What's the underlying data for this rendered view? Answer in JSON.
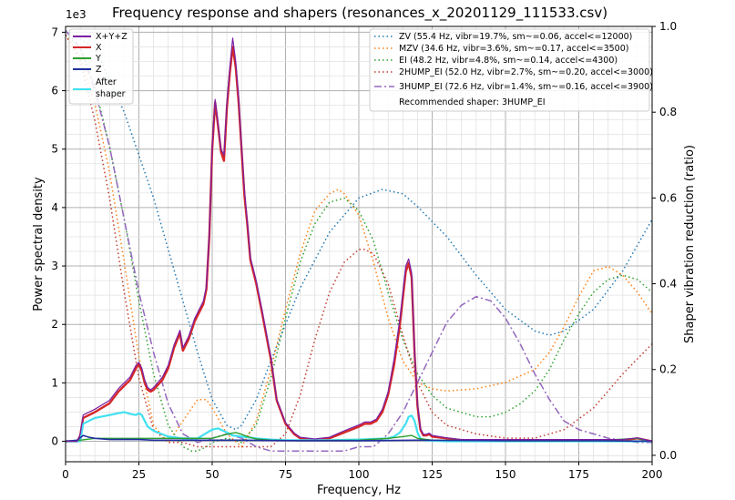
{
  "chart_data": {
    "type": "line",
    "title": "Frequency response and shapers (resonances_x_20201129_111533.csv)",
    "xlabel": "Frequency, Hz",
    "ylabel": "Power spectral density",
    "y2label": "Shaper vibration reduction (ratio)",
    "y_multiplier": "1e3",
    "xlim": [
      0,
      200
    ],
    "ylim": [
      -0.35,
      7.1
    ],
    "y2lim": [
      -0.015,
      1.0
    ],
    "xticks": [
      "0",
      "25",
      "50",
      "75",
      "100",
      "125",
      "150",
      "175",
      "200"
    ],
    "xtick_values": [
      0,
      25,
      50,
      75,
      100,
      125,
      150,
      175,
      200
    ],
    "yticks": [
      "0",
      "1",
      "2",
      "3",
      "4",
      "5",
      "6",
      "7"
    ],
    "ytick_values": [
      0,
      1,
      2,
      3,
      4,
      5,
      6,
      7
    ],
    "y2ticks": [
      "0.0",
      "0.2",
      "0.4",
      "0.6",
      "0.8",
      "1.0"
    ],
    "y2tick_values": [
      0,
      0.2,
      0.4,
      0.6,
      0.8,
      1.0
    ],
    "grid": true,
    "psd_legend": [
      "X+Y+Z",
      "X",
      "Y",
      "Z",
      "After\nshaper"
    ],
    "shaper_legend": [
      "ZV (55.4 Hz, vibr=19.7%, sm~=0.06, accel<=12000)",
      "MZV (34.6 Hz, vibr=3.6%, sm~=0.17, accel<=3500)",
      "EI (48.2 Hz, vibr=4.8%, sm~=0.14, accel<=4300)",
      "2HUMP_EI (52.0 Hz, vibr=2.7%, sm~=0.20, accel<=3000)",
      "3HUMP_EI (72.6 Hz, vibr=1.4%, sm~=0.16, accel<=3900)"
    ],
    "recommended": "Recommended shaper: 3HUMP_EI",
    "colors": {
      "xyz": "#7b1fa2",
      "x": "#d62728",
      "y": "#2ca02c",
      "z": "#1f2fa0",
      "after": "#40e0f0",
      "zv": "#1f77b4",
      "mzv": "#ff7f0e",
      "ei": "#2ca02c",
      "hump2": "#c0392b",
      "hump3": "#9467bd"
    },
    "psd_series": [
      {
        "name": "X",
        "x": [
          0,
          1,
          2,
          3,
          4,
          5,
          6,
          10,
          15,
          18,
          20,
          22,
          24,
          25,
          26,
          27,
          28,
          29,
          30,
          33,
          35,
          37,
          39,
          40,
          42,
          44,
          45,
          46,
          47,
          48,
          49,
          50,
          51,
          52,
          53,
          54,
          55,
          56,
          57,
          58,
          59,
          60,
          61,
          62,
          63,
          65,
          67,
          70,
          72,
          75,
          78,
          80,
          85,
          90,
          95,
          100,
          102,
          104,
          106,
          108,
          110,
          112,
          114,
          116,
          117,
          118,
          119,
          120,
          121,
          122,
          123,
          124,
          125,
          130,
          135,
          140,
          150,
          160,
          170,
          180,
          190,
          195,
          200
        ],
        "y": [
          0,
          0,
          0,
          0,
          0,
          0.1,
          0.4,
          0.5,
          0.65,
          0.85,
          0.95,
          1.05,
          1.25,
          1.32,
          1.2,
          1.0,
          0.88,
          0.85,
          0.88,
          1.05,
          1.25,
          1.6,
          1.85,
          1.55,
          1.75,
          2.05,
          2.15,
          2.25,
          2.35,
          2.6,
          3.5,
          5.0,
          5.8,
          5.4,
          4.95,
          4.8,
          5.7,
          6.3,
          6.75,
          6.4,
          5.8,
          5.0,
          4.2,
          3.7,
          3.1,
          2.7,
          2.2,
          1.4,
          0.7,
          0.3,
          0.12,
          0.05,
          0.02,
          0.05,
          0.15,
          0.25,
          0.3,
          0.3,
          0.35,
          0.5,
          0.8,
          1.3,
          2.0,
          2.9,
          3.05,
          2.8,
          1.5,
          0.6,
          0.2,
          0.1,
          0.1,
          0.12,
          0.08,
          0.05,
          0.02,
          0.02,
          0.02,
          0.02,
          0.02,
          0.02,
          0.02,
          0.05,
          0.0
        ]
      },
      {
        "name": "After shaper",
        "x": [
          0,
          5,
          6,
          10,
          15,
          18,
          20,
          22,
          24,
          25,
          26,
          27,
          28,
          30,
          35,
          40,
          45,
          50,
          52,
          55,
          57,
          60,
          65,
          70,
          75,
          80,
          90,
          100,
          110,
          112,
          114,
          116,
          117,
          118,
          119,
          120,
          121,
          122,
          125,
          130,
          150,
          170,
          200
        ],
        "y": [
          0,
          0,
          0.3,
          0.4,
          0.45,
          0.48,
          0.5,
          0.47,
          0.45,
          0.48,
          0.45,
          0.35,
          0.25,
          0.18,
          0.08,
          0.05,
          0.05,
          0.2,
          0.22,
          0.15,
          0.1,
          0.08,
          0.05,
          0.03,
          0.02,
          0.02,
          0.02,
          0.03,
          0.05,
          0.08,
          0.15,
          0.3,
          0.42,
          0.44,
          0.35,
          0.15,
          0.05,
          0.02,
          0.01,
          0.0,
          0.0,
          0.0,
          0.0
        ]
      },
      {
        "name": "Y",
        "x": [
          0,
          5,
          10,
          20,
          30,
          40,
          50,
          55,
          58,
          60,
          62,
          65,
          70,
          80,
          100,
          110,
          115,
          118,
          120,
          125,
          150,
          180,
          195,
          200
        ],
        "y": [
          0,
          0.02,
          0.05,
          0.05,
          0.05,
          0.05,
          0.05,
          0.12,
          0.15,
          0.12,
          0.08,
          0.04,
          0.02,
          0.01,
          0.02,
          0.05,
          0.08,
          0.1,
          0.05,
          0.02,
          0.01,
          0.01,
          0.05,
          0.0
        ]
      },
      {
        "name": "Z",
        "x": [
          0,
          4,
          6,
          8,
          10,
          15,
          20,
          25,
          30,
          40,
          50,
          60,
          80,
          100,
          120,
          150,
          180,
          200
        ],
        "y": [
          0,
          0.02,
          0.1,
          0.07,
          0.05,
          0.03,
          0.03,
          0.03,
          0.02,
          0.02,
          0.02,
          0.02,
          0.01,
          0.01,
          0.02,
          0.01,
          0.01,
          0.0
        ]
      },
      {
        "name": "X+Y+Z",
        "x": [
          0,
          1,
          2,
          3,
          4,
          5,
          6,
          10,
          15,
          18,
          20,
          22,
          24,
          25,
          26,
          27,
          28,
          29,
          30,
          33,
          35,
          37,
          39,
          40,
          42,
          44,
          45,
          46,
          47,
          48,
          49,
          50,
          51,
          52,
          53,
          54,
          55,
          56,
          57,
          58,
          59,
          60,
          61,
          62,
          63,
          65,
          67,
          70,
          72,
          75,
          78,
          80,
          85,
          90,
          95,
          100,
          102,
          104,
          106,
          108,
          110,
          112,
          114,
          116,
          117,
          118,
          119,
          120,
          121,
          122,
          123,
          124,
          125,
          130,
          135,
          140,
          150,
          160,
          170,
          180,
          190,
          195,
          200
        ],
        "y": [
          0,
          0,
          0,
          0,
          0,
          0.12,
          0.45,
          0.55,
          0.7,
          0.9,
          1.0,
          1.1,
          1.3,
          1.35,
          1.25,
          1.05,
          0.92,
          0.88,
          0.92,
          1.1,
          1.3,
          1.65,
          1.9,
          1.6,
          1.8,
          2.1,
          2.2,
          2.3,
          2.4,
          2.65,
          3.55,
          5.05,
          5.85,
          5.45,
          5.0,
          4.9,
          5.8,
          6.4,
          6.9,
          6.5,
          5.9,
          5.05,
          4.3,
          3.75,
          3.15,
          2.75,
          2.25,
          1.45,
          0.72,
          0.32,
          0.14,
          0.07,
          0.04,
          0.07,
          0.18,
          0.28,
          0.33,
          0.33,
          0.38,
          0.55,
          0.85,
          1.4,
          2.1,
          3.0,
          3.12,
          2.88,
          1.55,
          0.65,
          0.22,
          0.12,
          0.12,
          0.14,
          0.1,
          0.06,
          0.03,
          0.03,
          0.03,
          0.03,
          0.03,
          0.03,
          0.03,
          0.06,
          0.0
        ]
      }
    ],
    "shaper_series": [
      {
        "name": "ZV",
        "x": [
          0,
          10,
          20,
          30,
          40,
          45,
          50,
          55,
          58,
          60,
          65,
          70,
          80,
          90,
          100,
          108,
          115,
          120,
          130,
          140,
          150,
          160,
          165,
          170,
          180,
          190,
          200
        ],
        "y": [
          0.99,
          0.95,
          0.8,
          0.6,
          0.36,
          0.24,
          0.13,
          0.07,
          0.06,
          0.07,
          0.13,
          0.22,
          0.39,
          0.52,
          0.6,
          0.62,
          0.61,
          0.58,
          0.51,
          0.42,
          0.34,
          0.29,
          0.28,
          0.29,
          0.34,
          0.43,
          0.55
        ]
      },
      {
        "name": "MZV",
        "x": [
          0,
          5,
          10,
          15,
          20,
          25,
          30,
          35,
          40,
          45,
          48,
          50,
          55,
          60,
          65,
          70,
          75,
          80,
          85,
          90,
          93,
          95,
          100,
          105,
          110,
          115,
          120,
          125,
          130,
          140,
          150,
          160,
          165,
          170,
          175,
          180,
          185,
          190,
          195,
          200
        ],
        "y": [
          0.98,
          0.93,
          0.82,
          0.66,
          0.45,
          0.23,
          0.07,
          0.03,
          0.08,
          0.13,
          0.13,
          0.11,
          0.05,
          0.02,
          0.08,
          0.2,
          0.34,
          0.47,
          0.57,
          0.61,
          0.62,
          0.61,
          0.56,
          0.45,
          0.32,
          0.22,
          0.17,
          0.155,
          0.15,
          0.155,
          0.17,
          0.2,
          0.24,
          0.3,
          0.37,
          0.43,
          0.44,
          0.42,
          0.38,
          0.33
        ]
      },
      {
        "name": "EI",
        "x": [
          0,
          5,
          10,
          15,
          20,
          25,
          30,
          35,
          40,
          43,
          45,
          48,
          50,
          55,
          60,
          65,
          70,
          75,
          80,
          85,
          90,
          95,
          100,
          105,
          110,
          115,
          120,
          125,
          130,
          135,
          140,
          145,
          150,
          155,
          160,
          165,
          170,
          175,
          180,
          185,
          190,
          195,
          200
        ],
        "y": [
          0.98,
          0.95,
          0.86,
          0.72,
          0.55,
          0.36,
          0.19,
          0.07,
          0.02,
          0.01,
          0.01,
          0.02,
          0.03,
          0.04,
          0.03,
          0.07,
          0.18,
          0.32,
          0.45,
          0.54,
          0.59,
          0.6,
          0.57,
          0.5,
          0.38,
          0.27,
          0.19,
          0.14,
          0.11,
          0.1,
          0.09,
          0.09,
          0.1,
          0.12,
          0.15,
          0.2,
          0.27,
          0.33,
          0.38,
          0.41,
          0.42,
          0.41,
          0.38
        ]
      },
      {
        "name": "2HUMP_EI",
        "x": [
          0,
          5,
          10,
          15,
          20,
          25,
          30,
          35,
          40,
          45,
          50,
          55,
          60,
          65,
          70,
          75,
          80,
          85,
          90,
          95,
          100,
          102,
          105,
          110,
          115,
          120,
          125,
          130,
          140,
          150,
          160,
          170,
          180,
          190,
          200
        ],
        "y": [
          0.98,
          0.92,
          0.78,
          0.6,
          0.38,
          0.18,
          0.06,
          0.03,
          0.03,
          0.02,
          0.02,
          0.02,
          0.02,
          0.02,
          0.02,
          0.05,
          0.14,
          0.27,
          0.38,
          0.45,
          0.48,
          0.48,
          0.47,
          0.4,
          0.28,
          0.17,
          0.1,
          0.07,
          0.05,
          0.04,
          0.04,
          0.06,
          0.11,
          0.19,
          0.26
        ]
      },
      {
        "name": "3HUMP_EI",
        "x": [
          0,
          5,
          10,
          15,
          20,
          25,
          30,
          35,
          40,
          45,
          50,
          55,
          60,
          65,
          70,
          75,
          80,
          85,
          90,
          95,
          100,
          105,
          110,
          115,
          120,
          125,
          130,
          135,
          140,
          145,
          150,
          155,
          160,
          165,
          170,
          175,
          180,
          185,
          190,
          195,
          200
        ],
        "y": [
          0.99,
          0.95,
          0.85,
          0.72,
          0.55,
          0.38,
          0.24,
          0.12,
          0.05,
          0.03,
          0.04,
          0.05,
          0.04,
          0.02,
          0.01,
          0.01,
          0.01,
          0.01,
          0.01,
          0.01,
          0.02,
          0.02,
          0.05,
          0.1,
          0.17,
          0.24,
          0.31,
          0.35,
          0.37,
          0.36,
          0.32,
          0.26,
          0.19,
          0.13,
          0.08,
          0.06,
          0.05,
          0.04,
          0.035,
          0.03,
          0.03
        ]
      }
    ]
  }
}
